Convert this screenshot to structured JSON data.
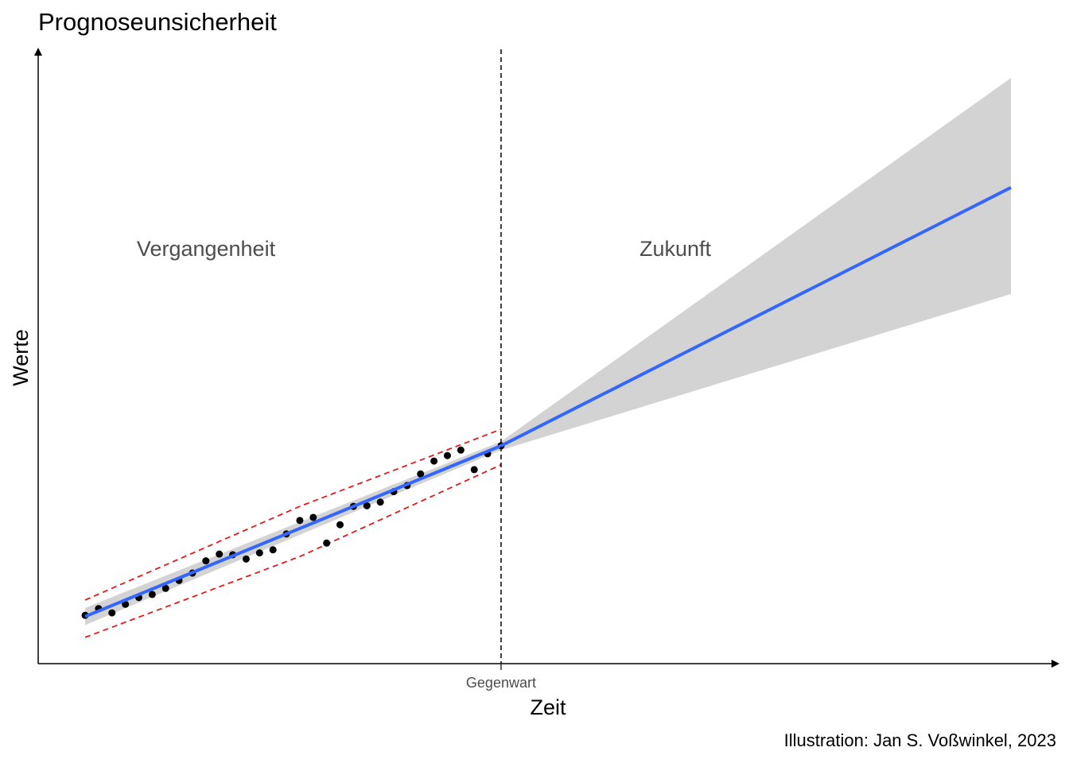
{
  "chart_data": {
    "type": "forecast",
    "title": "Prognoseunsicherheit",
    "x_label": "Zeit",
    "y_label": "Werte",
    "caption": "Illustration: Jan S. Voßwinkel, 2023",
    "annotations": [
      "Vergangenheit",
      "Zukunft"
    ],
    "xlim": [
      -2.5,
      73.5
    ],
    "ylim": [
      0,
      100
    ],
    "xticks": [
      {
        "value": 32,
        "label": "Gegenwart"
      }
    ],
    "vline": 32,
    "grid": false,
    "points": {
      "color": "#000000",
      "x": [
        1,
        2,
        3,
        4,
        5,
        6,
        7,
        8,
        9,
        10,
        11,
        12,
        13,
        14,
        15,
        16,
        17,
        18,
        19,
        20,
        21,
        22,
        23,
        24,
        25,
        26,
        27,
        28,
        29,
        30,
        31,
        32
      ],
      "values": [
        7.9,
        9.0,
        8.3,
        9.7,
        10.8,
        11.3,
        12.3,
        13.6,
        14.8,
        16.8,
        17.9,
        17.8,
        17.1,
        18.1,
        18.6,
        21.2,
        23.4,
        23.9,
        19.7,
        22.7,
        25.7,
        25.8,
        26.4,
        28.1,
        29.1,
        31.0,
        33.1,
        34.0,
        34.9,
        31.7,
        34.3,
        35.6
      ]
    },
    "fit": {
      "color": "#3366ff",
      "x": [
        1,
        32,
        70
      ],
      "values": [
        7.7,
        35.6,
        77.8
      ]
    },
    "band": {
      "color": "#d3d3d3",
      "x": [
        1,
        32,
        70
      ],
      "lower": [
        6.3,
        34.9,
        60.4
      ],
      "upper": [
        9.1,
        36.3,
        95.7
      ]
    },
    "interval": {
      "color": "#e41a1c",
      "x": [
        1,
        17,
        32
      ],
      "lower": [
        4.3,
        17.5,
        32.5
      ],
      "upper": [
        10.4,
        25.7,
        38.3
      ]
    }
  }
}
